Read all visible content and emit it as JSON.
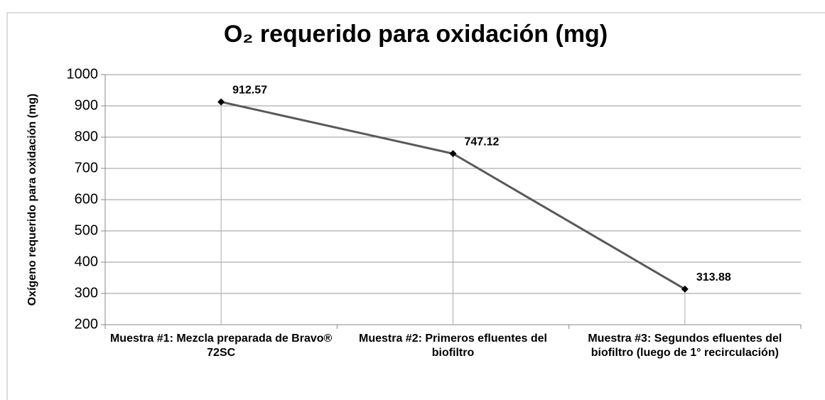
{
  "chart_data": {
    "type": "line",
    "title": "O₂ requerido para oxidación (mg)",
    "y_label": "Oxígeno requerido para oxidación (mg)",
    "categories": [
      "Muestra #1: Mezcla preparada de Bravo® 72SC",
      "Muestra #2: Primeros efluentes del biofiltro",
      "Muestra #3: Segundos efluentes del biofiltro (luego de 1° recirculación)"
    ],
    "series": [
      {
        "name": "O₂ requerido",
        "color": "#595959",
        "values": [
          912.57,
          747.12,
          313.88
        ]
      }
    ],
    "ylim": [
      200,
      1000
    ],
    "yticks": [
      200,
      300,
      400,
      500,
      600,
      700,
      800,
      900,
      1000
    ],
    "grid": true,
    "drop_lines": true
  }
}
